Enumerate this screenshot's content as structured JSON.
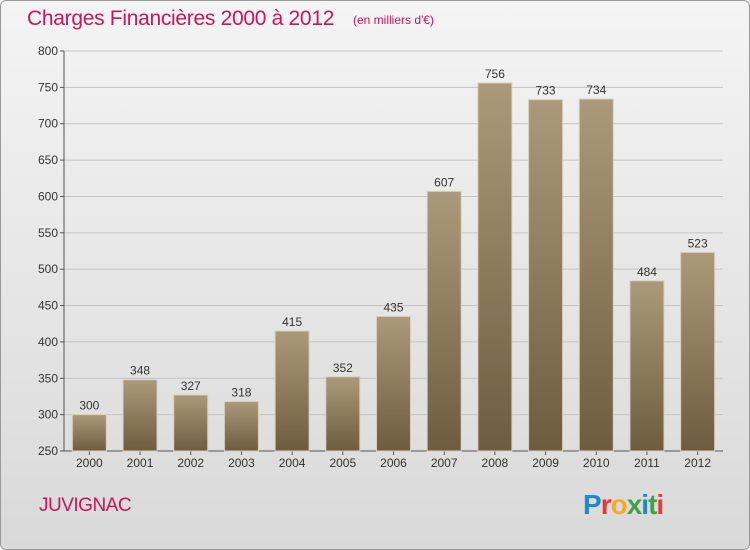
{
  "header": {
    "title": "Charges Financières 2000 à 2012",
    "subtitle": "(en milliers d'€)"
  },
  "footer": {
    "city": "JUVIGNAC",
    "brand": "Proxiti",
    "brand_colors": [
      "#1e88c8",
      "#e53935",
      "#f9a825",
      "#43a047",
      "#1e88c8",
      "#43a047",
      "#e53935"
    ]
  },
  "colors": {
    "bar_top": "#ab9a7a",
    "bar_bottom": "#6e5c3e",
    "accent": "#c2185b"
  },
  "chart_data": {
    "type": "bar",
    "categories": [
      "2000",
      "2001",
      "2002",
      "2003",
      "2004",
      "2005",
      "2006",
      "2007",
      "2008",
      "2009",
      "2010",
      "2011",
      "2012"
    ],
    "values": [
      300,
      348,
      327,
      318,
      415,
      352,
      435,
      607,
      756,
      733,
      734,
      484,
      523
    ],
    "ylim": [
      250,
      800
    ],
    "yticks": [
      250,
      300,
      350,
      400,
      450,
      500,
      550,
      600,
      650,
      700,
      750,
      800
    ],
    "grid": true
  }
}
